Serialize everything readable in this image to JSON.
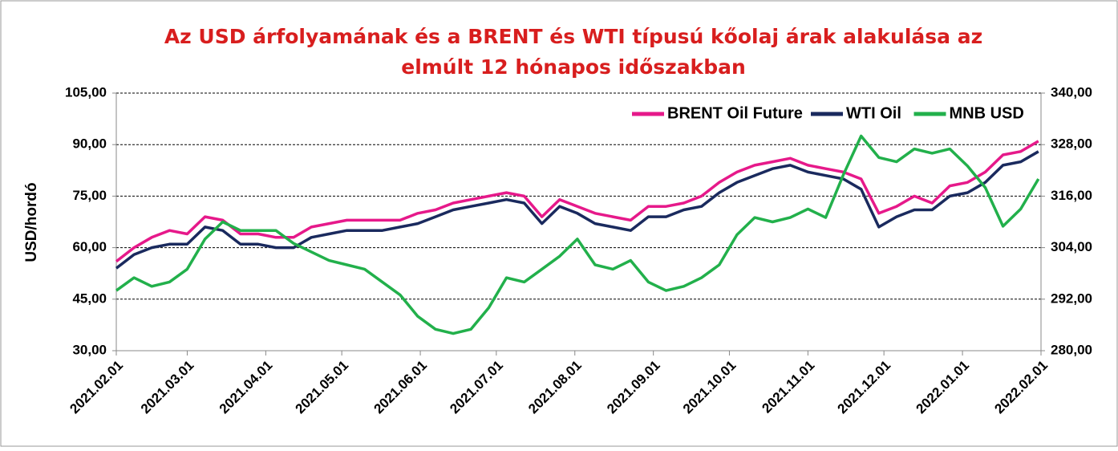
{
  "chart_data": {
    "type": "line",
    "title": [
      "Az USD árfolyamának és a BRENT és WTI típusú kőolaj árak alakulása az",
      "elmúlt 12 hónapos időszakban"
    ],
    "ylabel": "USD/hordó",
    "x": [
      "2021.02.01",
      "2021.02.08",
      "2021.02.15",
      "2021.02.22",
      "2021.03.01",
      "2021.03.08",
      "2021.03.15",
      "2021.03.22",
      "2021.03.29",
      "2021.04.05",
      "2021.04.12",
      "2021.04.19",
      "2021.04.26",
      "2021.05.03",
      "2021.05.10",
      "2021.05.17",
      "2021.05.24",
      "2021.05.31",
      "2021.06.07",
      "2021.06.14",
      "2021.06.21",
      "2021.06.28",
      "2021.07.05",
      "2021.07.12",
      "2021.07.19",
      "2021.07.26",
      "2021.08.02",
      "2021.08.09",
      "2021.08.16",
      "2021.08.23",
      "2021.08.30",
      "2021.09.06",
      "2021.09.13",
      "2021.09.20",
      "2021.09.27",
      "2021.10.04",
      "2021.10.11",
      "2021.10.18",
      "2021.10.25",
      "2021.11.01",
      "2021.11.08",
      "2021.11.15",
      "2021.11.22",
      "2021.11.29",
      "2021.12.06",
      "2021.12.13",
      "2021.12.20",
      "2021.12.27",
      "2022.01.03",
      "2022.01.10",
      "2022.01.17",
      "2022.01.24",
      "2022.01.31"
    ],
    "series": [
      {
        "name": "BRENT Oil Future",
        "color": "#e6198a",
        "values": [
          56,
          60,
          63,
          65,
          64,
          69,
          68,
          64,
          64,
          63,
          63,
          66,
          67,
          68,
          68,
          68,
          68,
          70,
          71,
          73,
          74,
          75,
          76,
          75,
          69,
          74,
          72,
          70,
          69,
          68,
          72,
          72,
          73,
          75,
          79,
          82,
          84,
          85,
          86,
          84,
          83,
          82,
          80,
          70,
          72,
          75,
          73,
          78,
          79,
          82,
          87,
          88,
          91
        ]
      },
      {
        "name": "WTI Oil",
        "color": "#1a2a5e",
        "values": [
          54,
          58,
          60,
          61,
          61,
          66,
          65,
          61,
          61,
          60,
          60,
          63,
          64,
          65,
          65,
          65,
          66,
          67,
          69,
          71,
          72,
          73,
          74,
          73,
          67,
          72,
          70,
          67,
          66,
          65,
          69,
          69,
          71,
          72,
          76,
          79,
          81,
          83,
          84,
          82,
          81,
          80,
          77,
          66,
          69,
          71,
          71,
          75,
          76,
          79,
          84,
          85,
          88
        ]
      },
      {
        "name": "MNB USD",
        "color": "#22b04b",
        "axis": "y2",
        "values": [
          294,
          297,
          295,
          296,
          299,
          306,
          310,
          308,
          308,
          308,
          305,
          303,
          301,
          300,
          299,
          296,
          293,
          288,
          285,
          284,
          285,
          290,
          297,
          296,
          299,
          302,
          306,
          300,
          299,
          301,
          296,
          294,
          295,
          297,
          300,
          307,
          311,
          310,
          311,
          313,
          311,
          321,
          330,
          325,
          324,
          327,
          326,
          327,
          323,
          318,
          309,
          313,
          320
        ]
      }
    ],
    "xlim": [
      "2021.02.01",
      "2022.02.01"
    ],
    "xticks": [
      "2021.02.01",
      "2021.03.01",
      "2021.04.01",
      "2021.05.01",
      "2021.06.01",
      "2021.07.01",
      "2021.08.01",
      "2021.09.01",
      "2021.10.01",
      "2021.11.01",
      "2021.12.01",
      "2022.01.01",
      "2022.02.01"
    ],
    "ylim": [
      30,
      105
    ],
    "yticks": [
      {
        "value": 30,
        "label": "30,00"
      },
      {
        "value": 45,
        "label": "45,00"
      },
      {
        "value": 60,
        "label": "60,00"
      },
      {
        "value": 75,
        "label": "75,00"
      },
      {
        "value": 90,
        "label": "90,00"
      },
      {
        "value": 105,
        "label": "105,00"
      }
    ],
    "y2lim": [
      280,
      340
    ],
    "y2ticks": [
      {
        "value": 280,
        "label": "280,00"
      },
      {
        "value": 292,
        "label": "292,00"
      },
      {
        "value": 304,
        "label": "304,00"
      },
      {
        "value": 316,
        "label": "316,00"
      },
      {
        "value": 328,
        "label": "328,00"
      },
      {
        "value": 340,
        "label": "340,00"
      }
    ],
    "grid": true,
    "legend": "upper right"
  }
}
